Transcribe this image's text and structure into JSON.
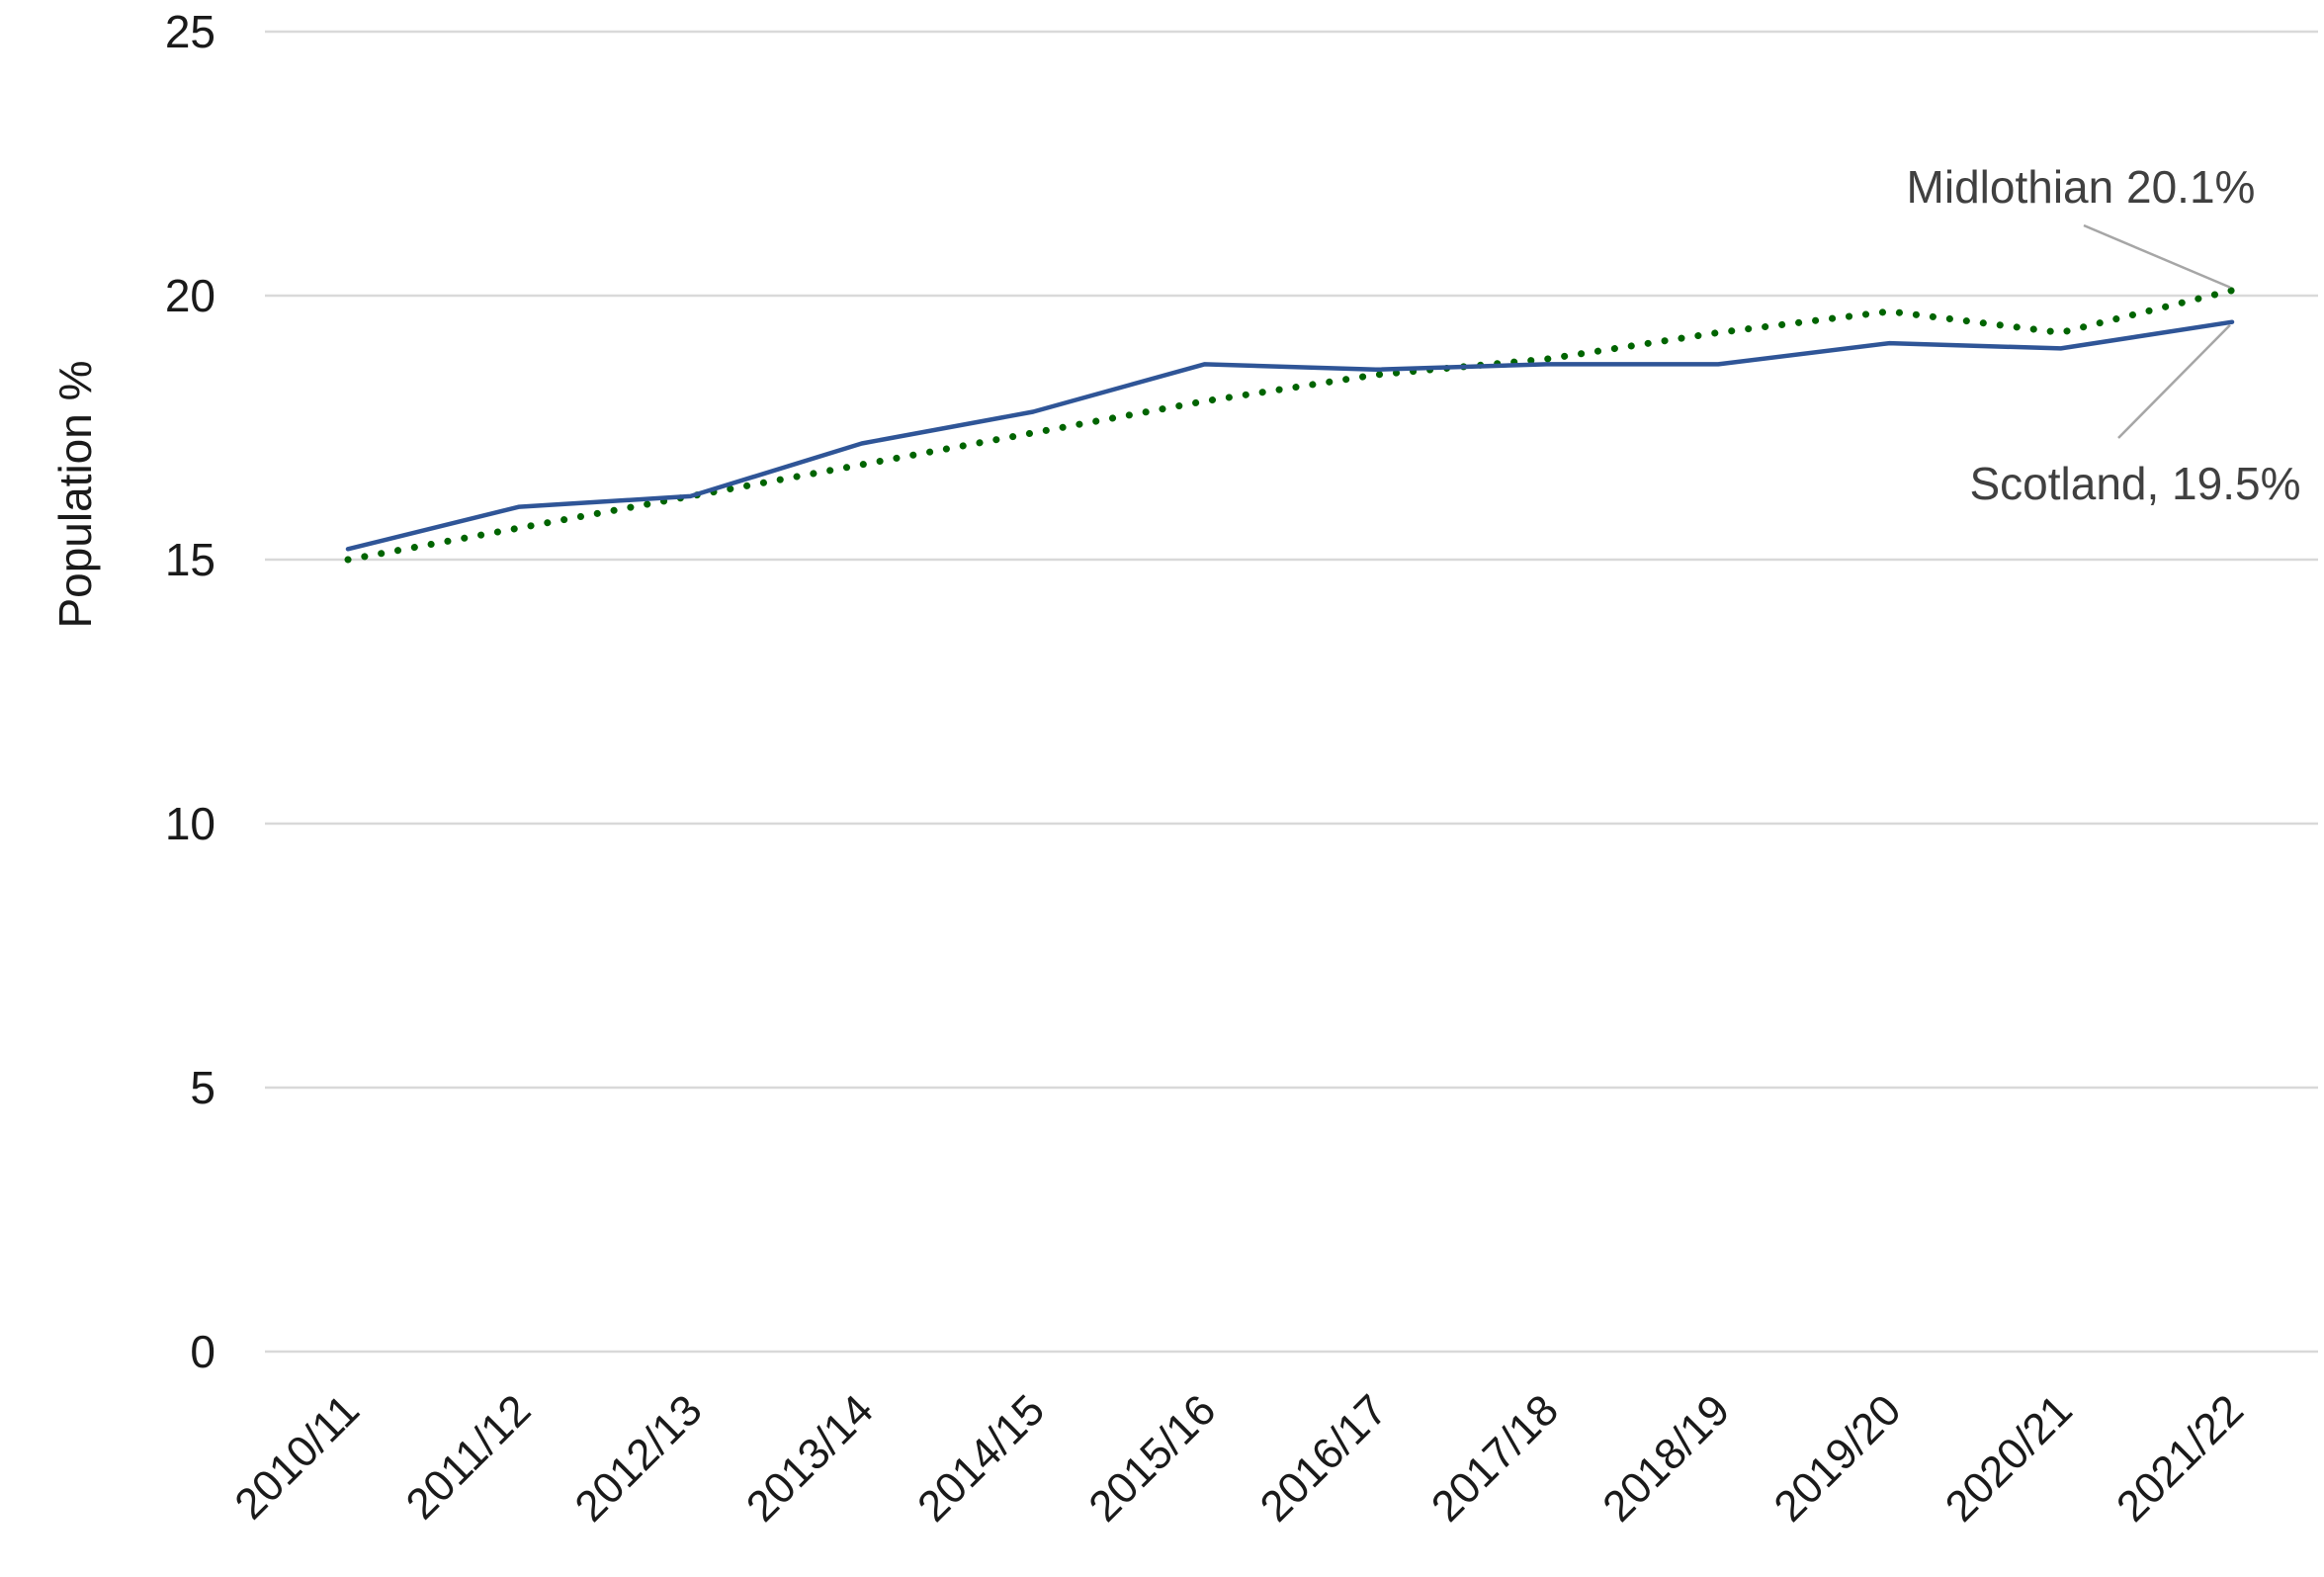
{
  "chart_data": {
    "type": "line",
    "title": "",
    "xlabel": "",
    "ylabel": "Population %",
    "ylim": [
      0,
      25
    ],
    "yticks": [
      0,
      5,
      10,
      15,
      20,
      25
    ],
    "grid": true,
    "legend": "none",
    "categories": [
      "2010/11",
      "2011/12",
      "2012/13",
      "2013/14",
      "2014/15",
      "2015/16",
      "2016/17",
      "2017/18",
      "2018/19",
      "2019/20",
      "2020/21",
      "2021/22"
    ],
    "series": [
      {
        "name": "Scotland",
        "style": "solid",
        "color": "#2F5597",
        "values": [
          15.2,
          16.0,
          16.2,
          17.2,
          17.8,
          18.7,
          18.6,
          18.7,
          18.7,
          19.1,
          19.0,
          19.5
        ]
      },
      {
        "name": "Midlothian",
        "style": "dotted",
        "color": "#006400",
        "values": [
          15.0,
          15.6,
          16.2,
          16.8,
          17.4,
          18.0,
          18.5,
          18.8,
          19.3,
          19.7,
          19.3,
          20.1
        ]
      }
    ],
    "annotations": [
      {
        "series": "Midlothian",
        "text": "Midlothian 20.1%"
      },
      {
        "series": "Scotland",
        "text": "Scotland, 19.5%"
      }
    ]
  }
}
